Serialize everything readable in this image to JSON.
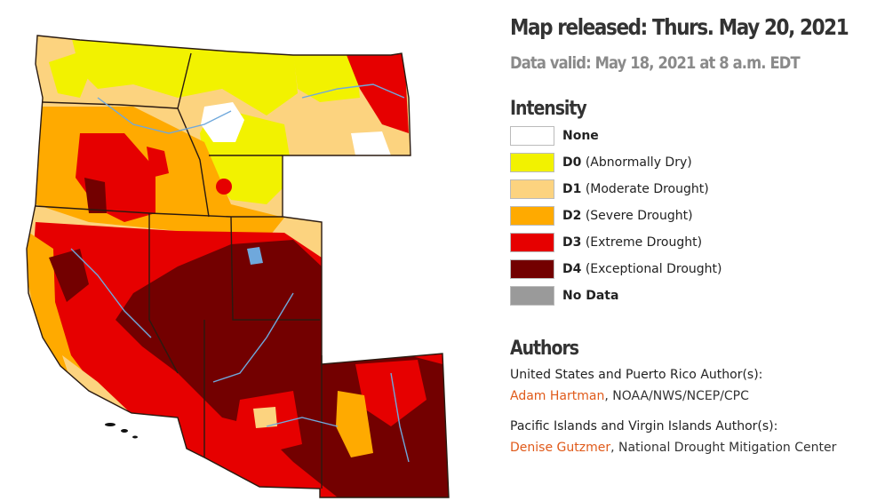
{
  "header": {
    "released": "Map released: Thurs. May 20, 2021",
    "valid": "Data valid: May 18, 2021 at 8 a.m. EDT"
  },
  "legend": {
    "title": "Intensity",
    "items": [
      {
        "code": "None",
        "desc": "",
        "color": "#ffffff"
      },
      {
        "code": "D0",
        "desc": " (Abnormally Dry)",
        "color": "#f2f200"
      },
      {
        "code": "D1",
        "desc": " (Moderate Drought)",
        "color": "#fcd37f"
      },
      {
        "code": "D2",
        "desc": " (Severe Drought)",
        "color": "#ffaa00"
      },
      {
        "code": "D3",
        "desc": " (Extreme Drought)",
        "color": "#e60000"
      },
      {
        "code": "D4",
        "desc": " (Exceptional Drought)",
        "color": "#730000"
      },
      {
        "code": "No Data",
        "desc": "",
        "color": "#9a9a9a"
      }
    ]
  },
  "authors": {
    "title": "Authors",
    "groups": [
      {
        "label": "United States and Puerto Rico Author(s):",
        "name": "Adam Hartman",
        "org": ", NOAA/NWS/NCEP/CPC"
      },
      {
        "label": "Pacific Islands and Virgin Islands Author(s):",
        "name": "Denise Gutzmer",
        "org": ", National Drought Mitigation Center"
      }
    ]
  },
  "map_colors": {
    "none": "#ffffff",
    "d0": "#f2f200",
    "d1": "#fcd37f",
    "d2": "#ffaa00",
    "d3": "#e60000",
    "d4": "#730000",
    "water": "#6fa8dc",
    "border": "#3a2a1a"
  }
}
